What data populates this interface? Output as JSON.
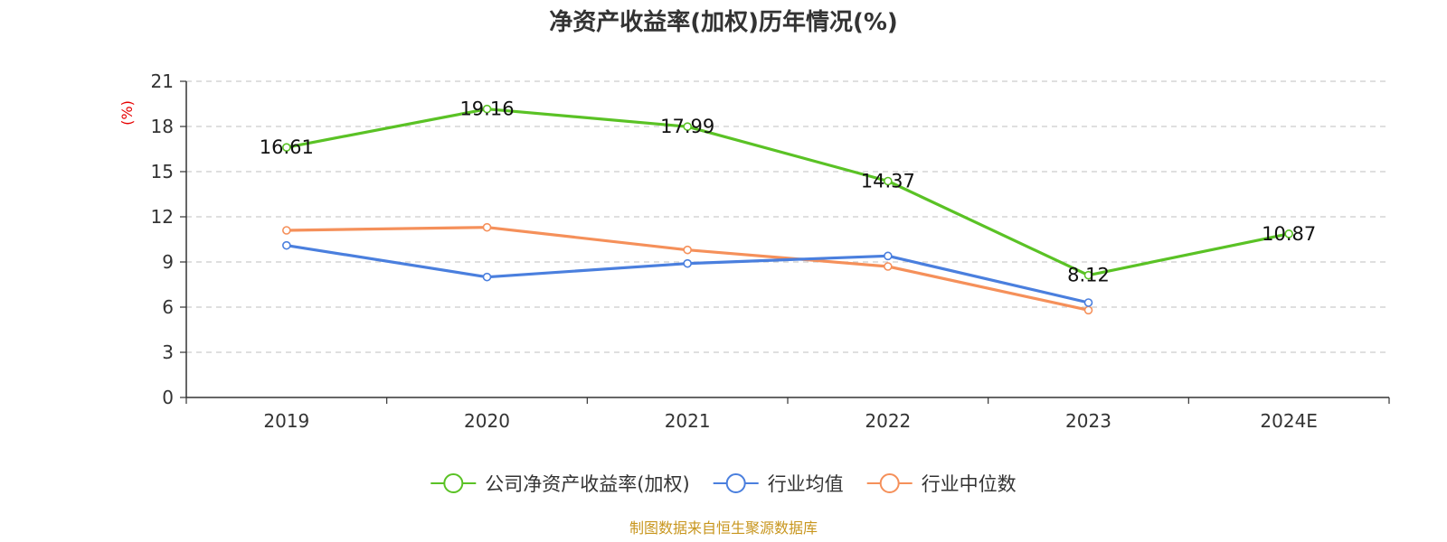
{
  "source_note": "制图数据来自恒生聚源数据库",
  "chart_data": {
    "type": "line",
    "title": "净资产收益率(加权)历年情况(%)",
    "ylabel": "(%)",
    "categories": [
      "2019",
      "2020",
      "2021",
      "2022",
      "2023",
      "2024E"
    ],
    "ylim": [
      0,
      21
    ],
    "yticks": [
      0,
      3,
      6,
      9,
      12,
      15,
      18,
      21
    ],
    "grid": true,
    "legend_position": "bottom",
    "series": [
      {
        "name": "公司净资产收益率(加权)",
        "color": "#5ac225",
        "values": [
          16.61,
          19.16,
          17.99,
          14.37,
          8.12,
          10.87
        ],
        "labels": [
          "16.61",
          "19.16",
          "17.99",
          "14.37",
          "8.12",
          "10.87"
        ]
      },
      {
        "name": "行业均值",
        "color": "#4a7fde",
        "values": [
          10.1,
          8.0,
          8.9,
          9.4,
          6.3,
          null
        ]
      },
      {
        "name": "行业中位数",
        "color": "#f5905a",
        "values": [
          11.1,
          11.3,
          9.8,
          8.7,
          5.8,
          null
        ]
      }
    ]
  }
}
